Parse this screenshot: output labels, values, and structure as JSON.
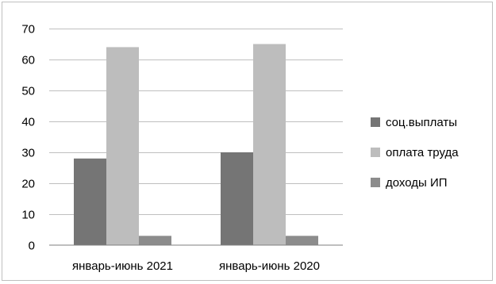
{
  "chart_data": {
    "type": "bar",
    "title": "",
    "xlabel": "",
    "ylabel": "",
    "categories": [
      "январь-июнь 2021",
      "январь-июнь 2020"
    ],
    "series": [
      {
        "name": "соц.выплаты",
        "values": [
          28,
          30
        ],
        "color": "#757575"
      },
      {
        "name": "оплата труда",
        "values": [
          64,
          65
        ],
        "color": "#bdbdbd"
      },
      {
        "name": "доходы ИП",
        "values": [
          3,
          3
        ],
        "color": "#8c8c8c"
      }
    ],
    "ylim": [
      0,
      70
    ],
    "yticks": [
      "0",
      "10",
      "20",
      "30",
      "40",
      "50",
      "60",
      "70"
    ],
    "grid": true,
    "legend_position": "right"
  }
}
